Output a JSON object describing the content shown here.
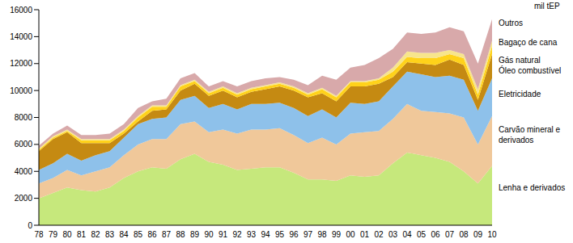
{
  "chart_data": {
    "type": "area",
    "stacked": true,
    "y_label": "mil tEP",
    "categories": [
      "78",
      "79",
      "80",
      "81",
      "82",
      "83",
      "84",
      "85",
      "86",
      "87",
      "88",
      "89",
      "90",
      "91",
      "92",
      "93",
      "94",
      "95",
      "96",
      "97",
      "98",
      "99",
      "00",
      "01",
      "02",
      "03",
      "04",
      "05",
      "06",
      "07",
      "08",
      "09",
      "10"
    ],
    "ylim": [
      0,
      16000
    ],
    "yticks": [
      0,
      2000,
      4000,
      6000,
      8000,
      10000,
      12000,
      14000,
      16000
    ],
    "grid": false,
    "series": [
      {
        "name": "Lenha e derivados",
        "color": "#c6e87c",
        "values": [
          2000,
          2400,
          2800,
          2600,
          2500,
          2800,
          3500,
          4000,
          4300,
          4200,
          4900,
          5300,
          4700,
          4500,
          4100,
          4200,
          4300,
          4300,
          3900,
          3400,
          3400,
          3300,
          3700,
          3600,
          3700,
          4600,
          5400,
          5200,
          5000,
          4700,
          4000,
          3100,
          4400
        ]
      },
      {
        "name": "Carvão mineral e derivados",
        "color": "#f0c89a",
        "values": [
          1100,
          1100,
          1300,
          1100,
          1500,
          1500,
          1700,
          2000,
          2100,
          2200,
          2600,
          2400,
          2200,
          2600,
          2700,
          2900,
          2800,
          2900,
          2800,
          2700,
          3100,
          2700,
          3100,
          3300,
          3300,
          3300,
          3600,
          3300,
          3400,
          3600,
          4000,
          2900,
          3700
        ]
      },
      {
        "name": "Eletricidade",
        "color": "#8ec1ea",
        "values": [
          1000,
          1100,
          1200,
          1100,
          1200,
          1200,
          1300,
          1500,
          1500,
          1600,
          1800,
          1900,
          1800,
          1900,
          1800,
          1900,
          1900,
          1900,
          2000,
          2000,
          2100,
          2000,
          2300,
          2100,
          2200,
          2400,
          2400,
          2700,
          2600,
          2800,
          2800,
          2500,
          2800
        ]
      },
      {
        "name": "Óleo combustível",
        "color": "#c58a12",
        "values": [
          1400,
          1800,
          1600,
          1300,
          900,
          600,
          300,
          200,
          600,
          600,
          700,
          900,
          900,
          1000,
          900,
          900,
          1100,
          1200,
          1300,
          1400,
          1200,
          1200,
          1200,
          1300,
          1300,
          700,
          700,
          800,
          900,
          1200,
          1100,
          800,
          1800
        ]
      },
      {
        "name": "Gás natural",
        "color": "#ffd21a",
        "values": [
          100,
          100,
          100,
          200,
          200,
          200,
          200,
          300,
          300,
          200,
          300,
          200,
          200,
          200,
          200,
          200,
          200,
          200,
          200,
          200,
          300,
          300,
          300,
          300,
          300,
          400,
          400,
          400,
          500,
          400,
          500,
          400,
          600
        ]
      },
      {
        "name": "Bagaço de cana",
        "color": "#f7e58c",
        "values": [
          100,
          100,
          100,
          100,
          100,
          100,
          100,
          100,
          100,
          100,
          100,
          100,
          100,
          100,
          100,
          100,
          100,
          100,
          100,
          100,
          100,
          100,
          100,
          100,
          100,
          300,
          400,
          400,
          400,
          300,
          300,
          400,
          400
        ]
      },
      {
        "name": "Outros",
        "color": "#d8a9aa",
        "values": [
          200,
          200,
          300,
          300,
          300,
          400,
          400,
          600,
          300,
          500,
          500,
          500,
          400,
          400,
          500,
          500,
          500,
          400,
          500,
          600,
          900,
          1200,
          1000,
          1200,
          1500,
          1400,
          1400,
          1400,
          1500,
          1700,
          1700,
          1900,
          1600
        ]
      }
    ]
  }
}
